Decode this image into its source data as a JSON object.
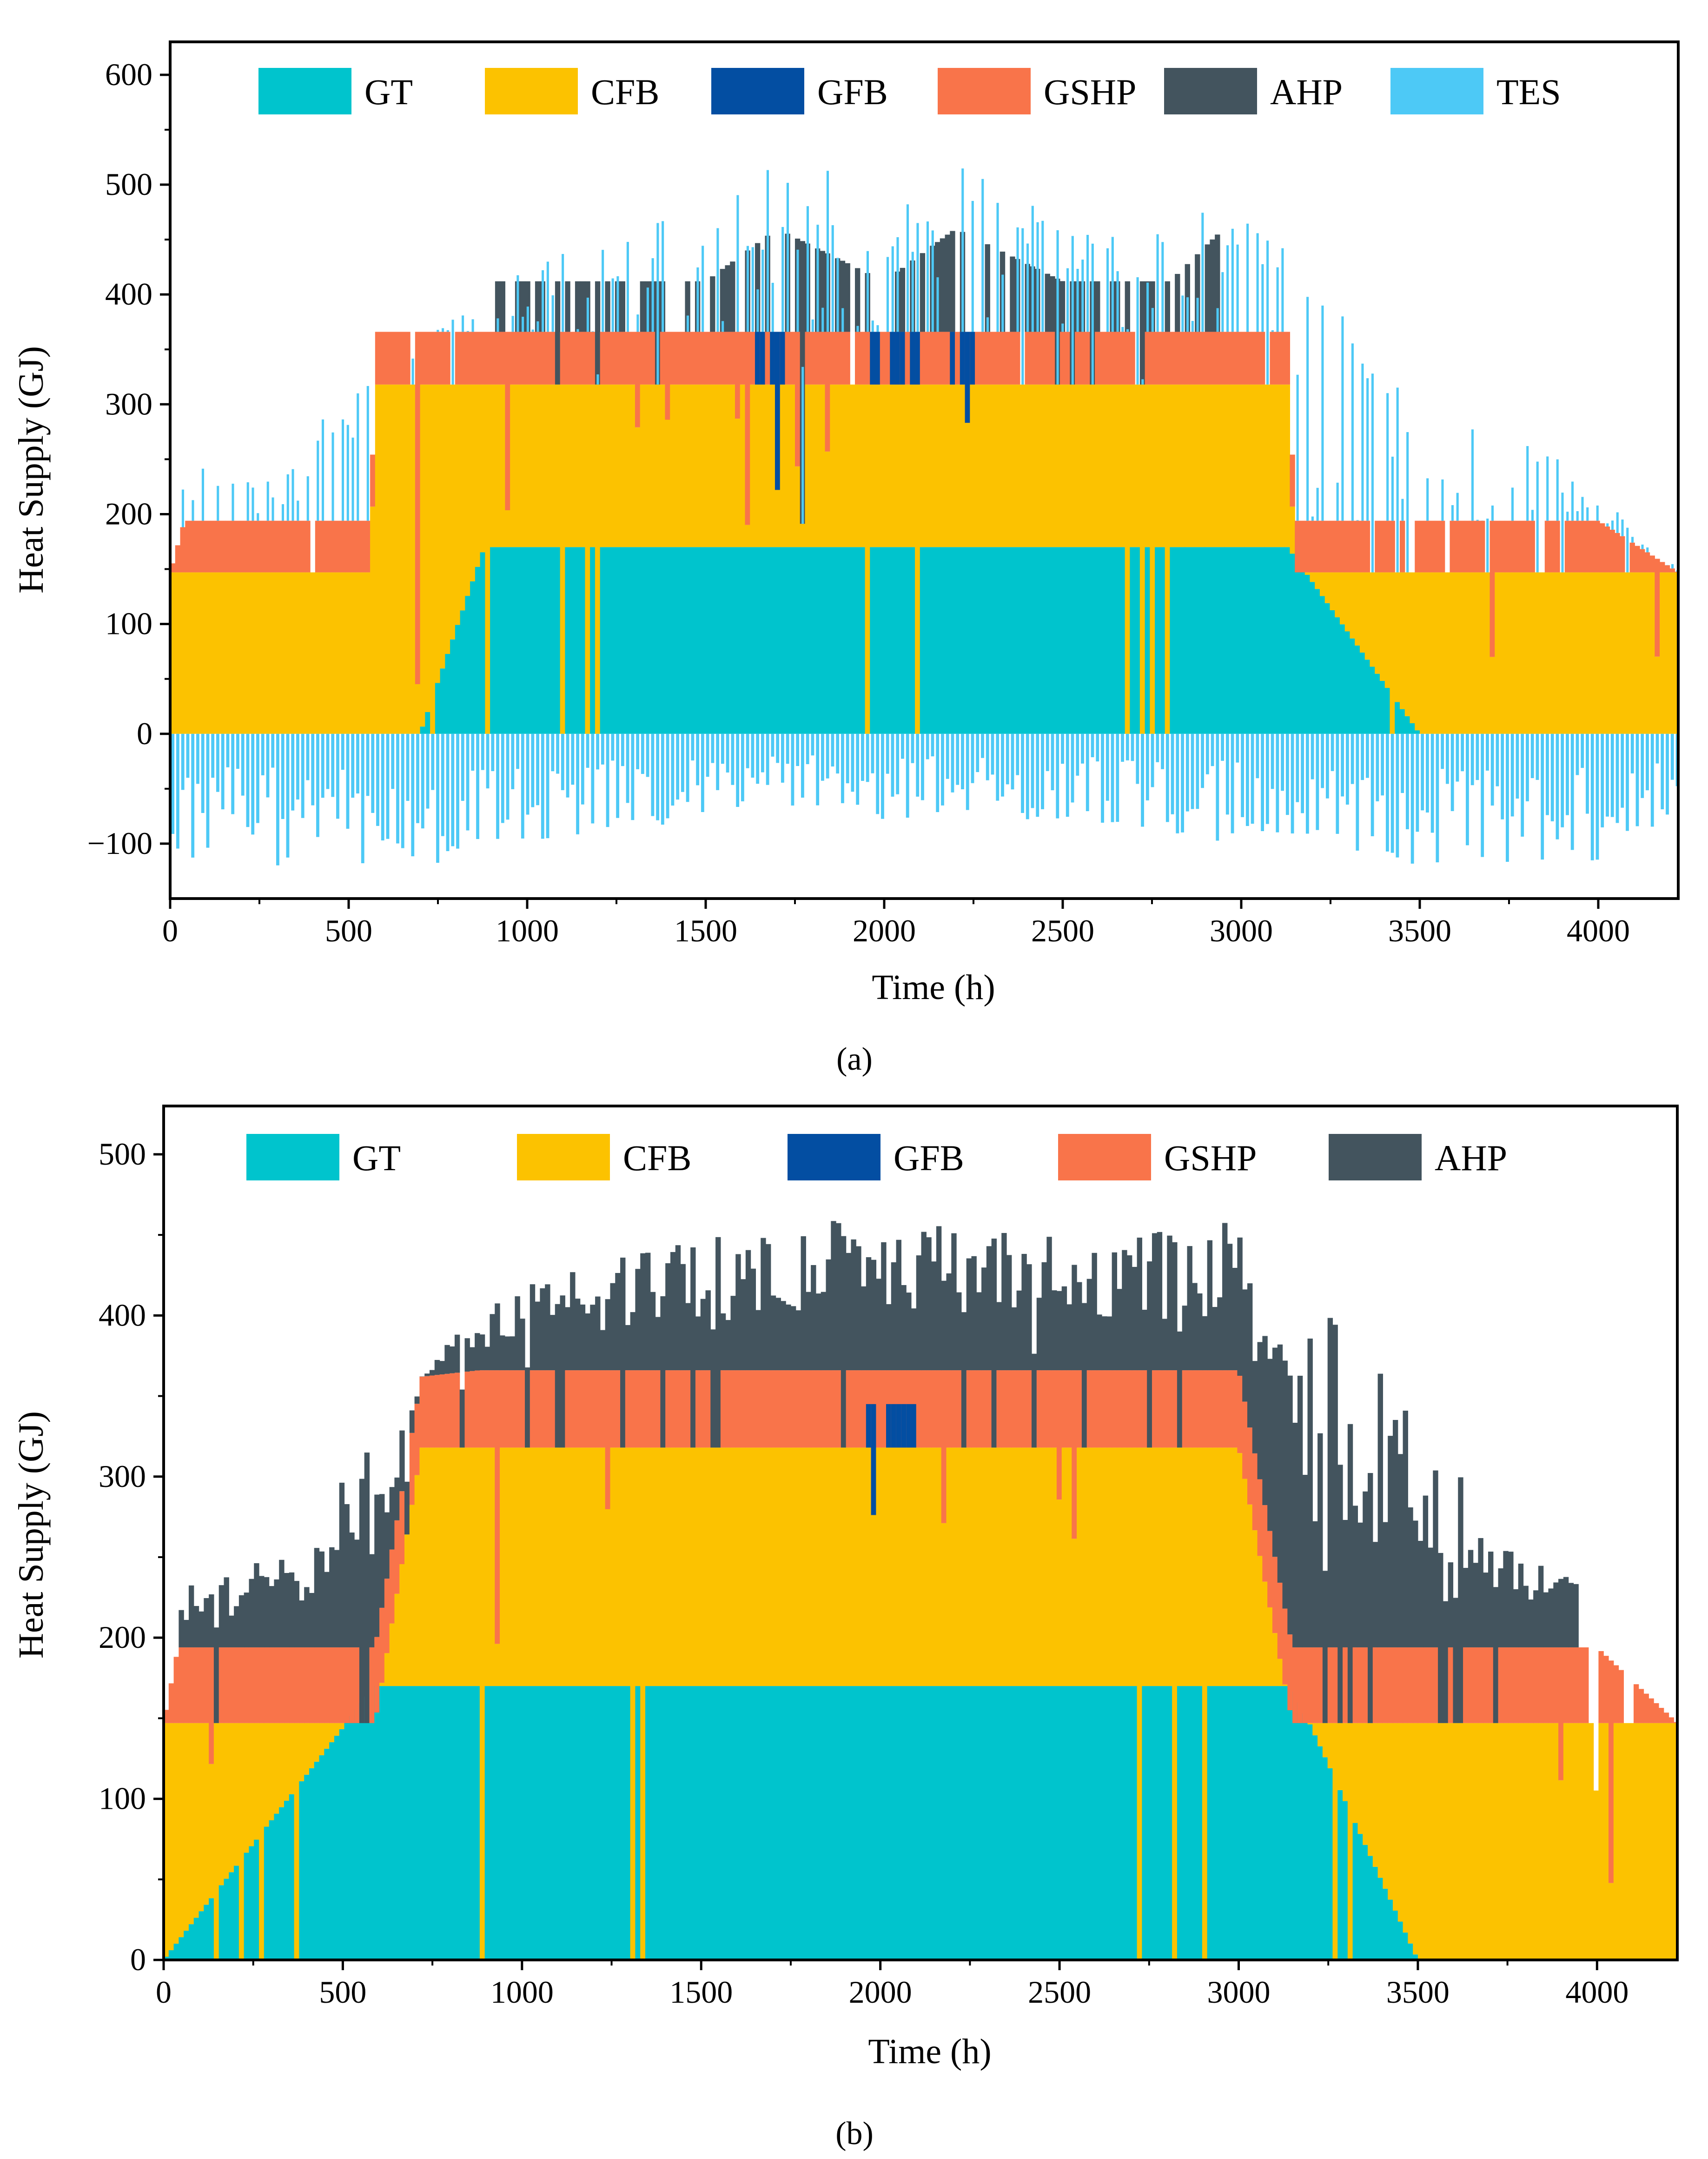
{
  "chart_data": [
    {
      "id": "a",
      "type": "area",
      "caption": "(a)",
      "xlabel": "Time (h)",
      "ylabel": "Heat Supply (GJ)",
      "xlim": [
        0,
        4224
      ],
      "ylim": [
        -150,
        630
      ],
      "xticks": [
        0,
        500,
        1000,
        1500,
        2000,
        2500,
        3000,
        3500,
        4000
      ],
      "yticks": [
        -100,
        0,
        100,
        200,
        300,
        400,
        500,
        600
      ],
      "ytick_labels": [
        "−100",
        "0",
        "100",
        "200",
        "300",
        "400",
        "500",
        "600"
      ],
      "legend": [
        "GT",
        "CFB",
        "GFB",
        "GSHP",
        "AHP",
        "TES"
      ],
      "legend_position": "top",
      "colors": {
        "GT": "#00c4cd",
        "CFB": "#fcc200",
        "GFB": "#034ea2",
        "GSHP": "#f9744a",
        "AHP": "#43545e",
        "TES": "#4dc9f6"
      },
      "series": [
        {
          "name": "GT",
          "x": [
            0,
            700,
            880,
            1100,
            1500,
            2000,
            2500,
            3000,
            3130,
            3500,
            4224
          ],
          "values": [
            0,
            0,
            170,
            170,
            170,
            170,
            170,
            170,
            170,
            0,
            0
          ]
        },
        {
          "name": "CFB",
          "x": [
            0,
            560,
            580,
            1000,
            1500,
            2000,
            2500,
            3000,
            3130,
            3150,
            4224
          ],
          "values": [
            147,
            147,
            318,
            318,
            318,
            318,
            318,
            318,
            318,
            147,
            147
          ]
        },
        {
          "name": "GFB",
          "x": [
            1640,
            1720,
            1960,
            2100,
            2180,
            2260
          ],
          "values": [
            366,
            366,
            366,
            366,
            366,
            366
          ]
        },
        {
          "name": "GSHP",
          "x": [
            0,
            40,
            560,
            580,
            1000,
            2000,
            3000,
            3130,
            3150,
            3500,
            3900,
            4000,
            4224
          ],
          "values": [
            147,
            194,
            194,
            366,
            366,
            366,
            366,
            366,
            194,
            194,
            194,
            194,
            147
          ]
        },
        {
          "name": "AHP",
          "x": [
            880,
            1000,
            1500,
            1700,
            2000,
            2200,
            2500,
            2800,
            2950
          ],
          "values": [
            412,
            412,
            412,
            460,
            412,
            460,
            412,
            412,
            460
          ]
        },
        {
          "name": "TES",
          "x": [
            0,
            250,
            500,
            800,
            1000,
            1500,
            1700,
            2000,
            2250,
            2500,
            3000,
            3500,
            4000,
            4224
          ],
          "values_peak": [
            250,
            230,
            320,
            380,
            430,
            480,
            530,
            500,
            535,
            460,
            480,
            320,
            230,
            150
          ],
          "values_min": [
            -120,
            -120,
            -120,
            -120,
            -100,
            -80,
            -70,
            -80,
            -80,
            -80,
            -100,
            -120,
            -120,
            -75
          ]
        }
      ]
    },
    {
      "id": "b",
      "type": "area",
      "caption": "(b)",
      "xlabel": "Time (h)",
      "ylabel": "Heat Supply (GJ)",
      "xlim": [
        0,
        4224
      ],
      "ylim": [
        0,
        530
      ],
      "xticks": [
        0,
        500,
        1000,
        1500,
        2000,
        2500,
        3000,
        3500,
        4000
      ],
      "yticks": [
        0,
        100,
        200,
        300,
        400,
        500
      ],
      "ytick_labels": [
        "0",
        "100",
        "200",
        "300",
        "400",
        "500"
      ],
      "legend": [
        "GT",
        "CFB",
        "GFB",
        "GSHP",
        "AHP"
      ],
      "legend_position": "top",
      "colors": {
        "GT": "#00c4cd",
        "CFB": "#fcc200",
        "GFB": "#034ea2",
        "GSHP": "#f9744a",
        "AHP": "#43545e"
      },
      "series": [
        {
          "name": "GT",
          "x": [
            0,
            590,
            1500,
            2000,
            2500,
            3000,
            3150,
            3500,
            4224
          ],
          "values": [
            0,
            170,
            170,
            170,
            170,
            170,
            170,
            0,
            0
          ]
        },
        {
          "name": "CFB",
          "x": [
            0,
            590,
            720,
            1000,
            1500,
            2000,
            2500,
            3000,
            3150,
            3500,
            4224
          ],
          "values": [
            147,
            147,
            318,
            318,
            318,
            318,
            318,
            318,
            147,
            147,
            147
          ]
        },
        {
          "name": "GFB",
          "x": [
            1950,
            2100
          ],
          "values": [
            345,
            345
          ]
        },
        {
          "name": "GSHP",
          "x": [
            0,
            40,
            590,
            720,
            880,
            1500,
            2000,
            2500,
            3000,
            3150,
            3500,
            4000,
            4224
          ],
          "values": [
            147,
            194,
            194,
            362,
            366,
            366,
            366,
            366,
            366,
            194,
            194,
            194,
            147
          ]
        },
        {
          "name": "AHP",
          "x": [
            40,
            350,
            800,
            1000,
            1500,
            1700,
            2000,
            2200,
            2500,
            2950,
            3280,
            3800,
            3950
          ],
          "values_peak": [
            230,
            255,
            385,
            420,
            450,
            460,
            460,
            460,
            450,
            460,
            400,
            250,
            240
          ]
        }
      ]
    }
  ]
}
